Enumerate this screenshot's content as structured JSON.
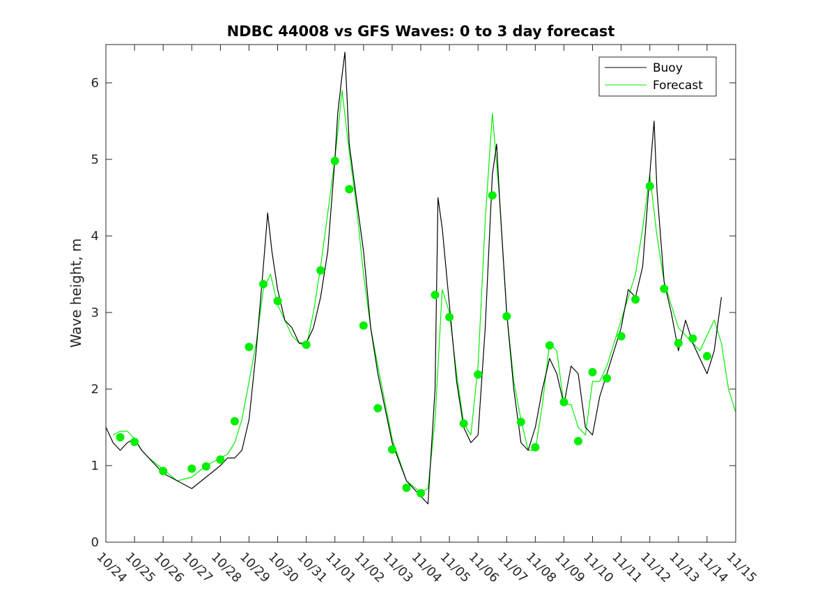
{
  "chart_data": {
    "type": "line",
    "title": "NDBC 44008 vs GFS Waves: 0 to 3 day forecast",
    "xlabel": "",
    "ylabel": "Wave height, m",
    "x_unit": "days since 10/24",
    "xlim": [
      0,
      22
    ],
    "ylim": [
      0,
      6.5
    ],
    "yticks": [
      0,
      1,
      2,
      3,
      4,
      5,
      6
    ],
    "xtick_labels": [
      "10/24",
      "10/25",
      "10/26",
      "10/27",
      "10/28",
      "10/29",
      "10/30",
      "10/31",
      "11/01",
      "11/02",
      "11/03",
      "11/04",
      "11/05",
      "11/06",
      "11/07",
      "11/08",
      "11/09",
      "11/10",
      "11/11",
      "11/12",
      "11/13",
      "11/14",
      "11/15"
    ],
    "legend": {
      "position": "top-right",
      "entries": [
        {
          "label": "Buoy",
          "color": "#000000"
        },
        {
          "label": "Forecast",
          "color": "#00ee00"
        }
      ]
    },
    "series": [
      {
        "name": "Buoy",
        "color": "#000000",
        "x": [
          0,
          0.25,
          0.5,
          0.75,
          1,
          1.25,
          1.5,
          2,
          2.5,
          3,
          3.5,
          4,
          4.25,
          4.5,
          4.75,
          5,
          5.25,
          5.5,
          5.65,
          5.8,
          6,
          6.25,
          6.5,
          6.75,
          7,
          7.25,
          7.5,
          7.75,
          8,
          8.1,
          8.25,
          8.35,
          8.5,
          8.75,
          9,
          9.25,
          9.5,
          10,
          10.5,
          11,
          11.25,
          11.5,
          11.6,
          11.75,
          12,
          12.25,
          12.5,
          12.75,
          13,
          13.25,
          13.5,
          13.65,
          13.75,
          14,
          14.25,
          14.5,
          14.75,
          15,
          15.25,
          15.5,
          15.75,
          16,
          16.25,
          16.5,
          16.75,
          17,
          17.25,
          17.5,
          17.75,
          18,
          18.25,
          18.5,
          18.75,
          19,
          19.15,
          19.25,
          19.5,
          19.75,
          20,
          20.25,
          20.5,
          20.75,
          21,
          21.25,
          21.5
        ],
        "y": [
          1.5,
          1.3,
          1.2,
          1.3,
          1.35,
          1.2,
          1.1,
          0.9,
          0.8,
          0.7,
          0.85,
          1.0,
          1.1,
          1.1,
          1.2,
          1.6,
          2.5,
          3.6,
          4.3,
          3.8,
          3.3,
          2.9,
          2.8,
          2.6,
          2.6,
          2.8,
          3.2,
          3.8,
          5.0,
          5.6,
          6.1,
          6.4,
          5.2,
          4.5,
          3.8,
          2.8,
          2.2,
          1.3,
          0.8,
          0.6,
          0.5,
          2.0,
          4.5,
          4.1,
          3.1,
          2.1,
          1.5,
          1.3,
          1.4,
          2.8,
          4.8,
          5.2,
          4.5,
          3.0,
          2.0,
          1.3,
          1.2,
          1.5,
          2.0,
          2.4,
          2.2,
          1.8,
          2.3,
          2.2,
          1.5,
          1.4,
          1.9,
          2.2,
          2.5,
          2.8,
          3.3,
          3.2,
          3.6,
          4.8,
          5.5,
          4.6,
          3.4,
          3.0,
          2.5,
          2.9,
          2.6,
          2.4,
          2.2,
          2.5,
          3.2
        ]
      },
      {
        "name": "Forecast",
        "color": "#00ee00",
        "x": [
          0.25,
          0.5,
          0.75,
          1,
          1.25,
          1.5,
          2,
          2.5,
          3,
          3.5,
          4,
          4.25,
          4.5,
          4.75,
          5,
          5.25,
          5.5,
          5.75,
          6,
          6.25,
          6.5,
          6.75,
          7,
          7.25,
          7.5,
          7.75,
          8,
          8.25,
          8.5,
          8.75,
          9,
          9.25,
          9.5,
          10,
          10.5,
          11,
          11.25,
          11.5,
          11.75,
          12,
          12.25,
          12.5,
          12.75,
          13,
          13.25,
          13.5,
          13.75,
          14,
          14.25,
          14.5,
          14.75,
          15,
          15.25,
          15.5,
          15.75,
          16,
          16.25,
          16.5,
          16.75,
          17,
          17.25,
          17.5,
          17.75,
          18,
          18.25,
          18.5,
          18.75,
          19,
          19.25,
          19.5,
          19.75,
          20,
          20.25,
          20.5,
          20.75,
          21,
          21.25,
          21.5,
          21.75,
          22
        ],
        "y": [
          1.4,
          1.45,
          1.45,
          1.35,
          1.2,
          1.1,
          0.95,
          0.8,
          0.85,
          1.0,
          1.1,
          1.15,
          1.3,
          1.6,
          2.1,
          2.6,
          3.3,
          3.5,
          3.1,
          2.9,
          2.7,
          2.6,
          2.55,
          3.0,
          3.6,
          4.3,
          5.0,
          5.9,
          5.1,
          4.4,
          3.5,
          2.8,
          2.3,
          1.35,
          0.8,
          0.65,
          0.7,
          1.6,
          3.3,
          3.0,
          2.2,
          1.55,
          1.4,
          2.3,
          4.2,
          5.6,
          4.5,
          3.0,
          2.1,
          1.6,
          1.2,
          1.2,
          1.8,
          2.6,
          2.5,
          1.8,
          1.8,
          1.5,
          1.4,
          2.1,
          2.1,
          2.3,
          2.6,
          2.9,
          3.2,
          3.5,
          4.1,
          4.8,
          4.0,
          3.4,
          3.1,
          2.8,
          2.7,
          2.6,
          2.5,
          2.7,
          2.9,
          2.6,
          2.0,
          1.7
        ]
      }
    ],
    "markers": {
      "name": "Forecast points",
      "color": "#00ee00",
      "x": [
        0.5,
        1,
        2,
        3,
        3.5,
        4,
        4.5,
        5,
        5.5,
        6,
        7,
        7.5,
        8,
        8.5,
        9,
        9.5,
        10,
        10.5,
        11,
        11.5,
        12,
        12.5,
        13,
        13.5,
        14,
        14.5,
        15,
        15.5,
        16,
        16.5,
        17,
        17.5,
        18,
        18.5,
        19,
        19.5,
        20,
        20.5,
        21
      ],
      "y": [
        1.37,
        1.31,
        0.93,
        0.96,
        0.99,
        1.08,
        1.58,
        2.55,
        3.37,
        3.15,
        2.58,
        3.55,
        4.98,
        4.61,
        2.83,
        1.75,
        1.21,
        0.71,
        0.64,
        3.23,
        2.94,
        1.55,
        2.19,
        4.53,
        2.95,
        1.57,
        1.24,
        2.57,
        1.83,
        1.32,
        2.22,
        2.14,
        2.69,
        3.17,
        4.65,
        3.31,
        2.6,
        2.66,
        2.43
      ]
    }
  }
}
